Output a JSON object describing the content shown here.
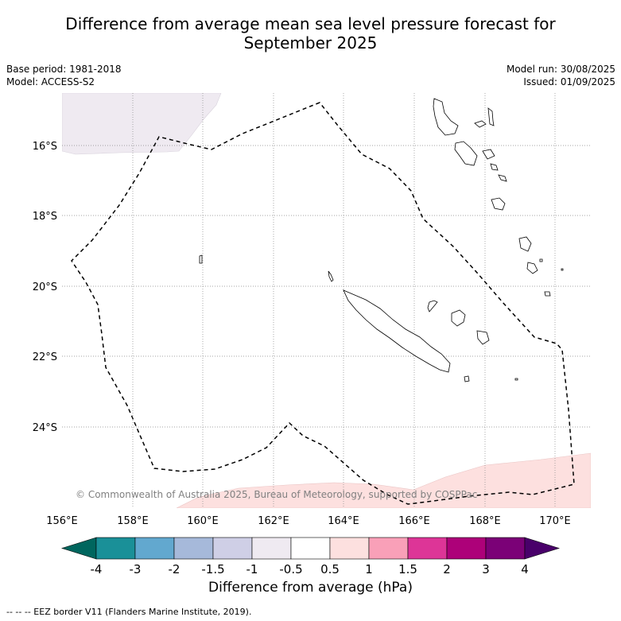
{
  "title_line1": "Difference from average mean sea level pressure forecast for",
  "title_line2": "September 2025",
  "base_period": "Base period: 1981-2018",
  "model": "Model: ACCESS-S2",
  "model_run": "Model run: 30/08/2025",
  "issued": "Issued: 01/09/2025",
  "credit": "© Commonwealth of Australia 2025, Bureau of Meteorology, supported by COSPPac",
  "lon_ticks": [
    "156°E",
    "158°E",
    "160°E",
    "162°E",
    "164°E",
    "166°E",
    "168°E",
    "170°E"
  ],
  "lat_ticks": [
    "16°S",
    "18°S",
    "20°S",
    "22°S",
    "24°S"
  ],
  "colorbar": {
    "ticks": [
      "-4",
      "-3",
      "-2",
      "-1.5",
      "-1",
      "-0.5",
      "0.5",
      "1",
      "1.5",
      "2",
      "3",
      "4"
    ],
    "colors": [
      "#00665e",
      "#1a9098",
      "#62a8cf",
      "#a6b9da",
      "#cfcfe6",
      "#efeaf1",
      "#ffffff",
      "#fde0df",
      "#f9a0b8",
      "#dd3597",
      "#ad0179",
      "#7b0177",
      "#49006a"
    ],
    "label": "Difference from average (hPa)"
  },
  "footer": "--  --  -- EEZ border V11 (Flanders Marine Institute, 2019)."
}
